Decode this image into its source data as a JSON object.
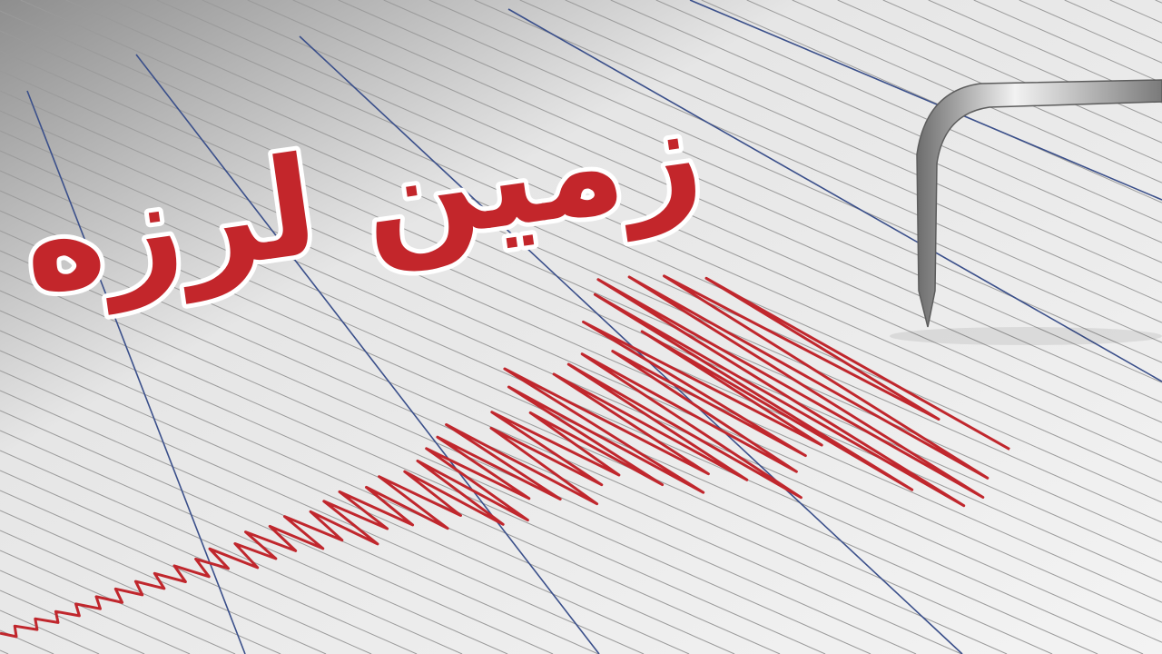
{
  "headline": {
    "text": "زمین لرزه",
    "color": "#c3262b",
    "outline_color": "#ffffff"
  },
  "colors": {
    "paper": "#f4f4f4",
    "grid_line": "#9a9a9a",
    "major_line": "#3a4f8a",
    "trace": "#c0272d",
    "needle": "#a8a8a8"
  },
  "icons": [
    "seismograph-needle-icon"
  ]
}
